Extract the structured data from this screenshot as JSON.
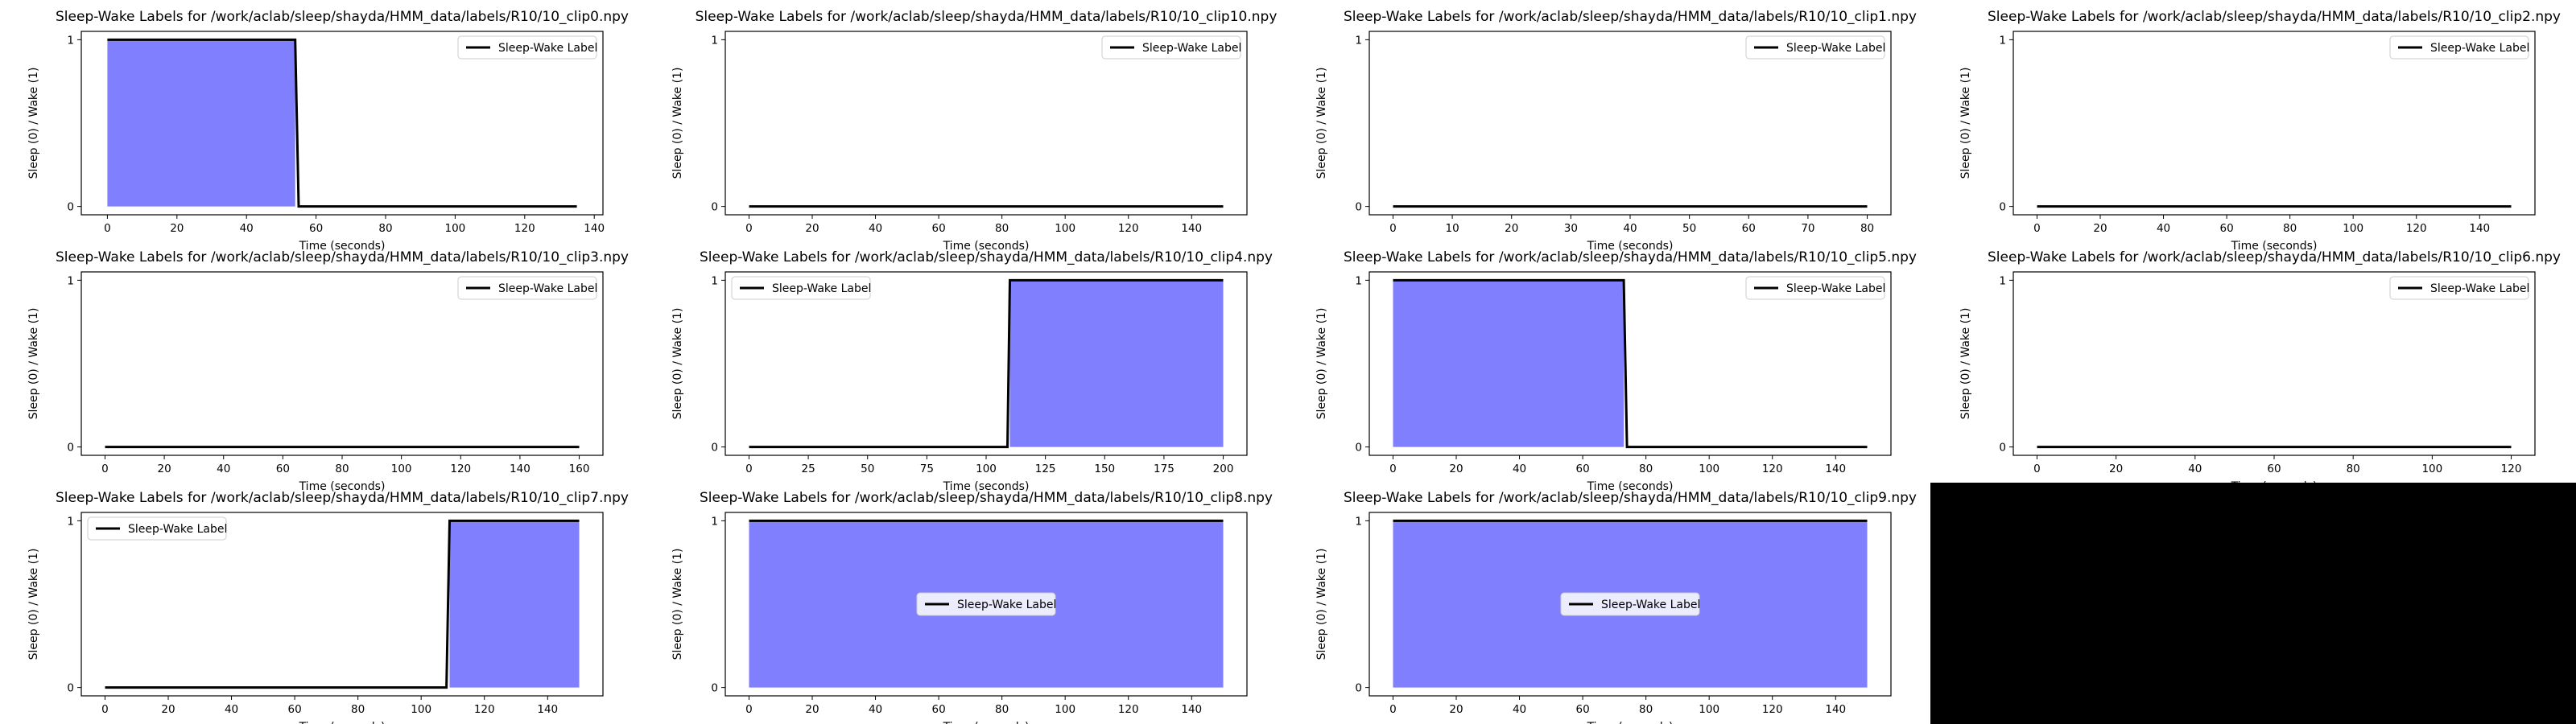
{
  "figure": {
    "background": "#ffffff",
    "fill_color": "#8080ff",
    "line_color": "#000000",
    "empty_panel_color": "#000000"
  },
  "chart_data": [
    {
      "type": "area",
      "title": "Sleep-Wake Labels for /work/aclab/sleep/shayda/HMM_data/labels/R10/10_clip0.npy",
      "xlabel": "Time (seconds)",
      "ylabel": "Sleep (0) / Wake (1)",
      "xlim": [
        -7.5,
        142.5
      ],
      "ylim": [
        -0.05,
        1.05
      ],
      "xticks": [
        0,
        20,
        40,
        60,
        80,
        100,
        120,
        140
      ],
      "yticks": [
        0,
        1
      ],
      "legend": "upper right",
      "series": [
        {
          "name": "Sleep-Wake Label",
          "segments": [
            [
              0,
              54,
              1
            ],
            [
              55,
              135,
              0
            ]
          ]
        }
      ]
    },
    {
      "type": "area",
      "title": "Sleep-Wake Labels for /work/aclab/sleep/shayda/HMM_data/labels/R10/10_clip10.npy",
      "xlabel": "Time (seconds)",
      "ylabel": "Sleep (0) / Wake (1)",
      "xlim": [
        -7.5,
        157.5
      ],
      "ylim": [
        -0.05,
        1.05
      ],
      "xticks": [
        0,
        20,
        40,
        60,
        80,
        100,
        120,
        140
      ],
      "yticks": [
        0,
        1
      ],
      "legend": "upper right",
      "series": [
        {
          "name": "Sleep-Wake Label",
          "segments": [
            [
              0,
              150,
              0
            ]
          ]
        }
      ]
    },
    {
      "type": "area",
      "title": "Sleep-Wake Labels for /work/aclab/sleep/shayda/HMM_data/labels/R10/10_clip1.npy",
      "xlabel": "Time (seconds)",
      "ylabel": "Sleep (0) / Wake (1)",
      "xlim": [
        -4,
        84
      ],
      "ylim": [
        -0.05,
        1.05
      ],
      "xticks": [
        0,
        10,
        20,
        30,
        40,
        50,
        60,
        70,
        80
      ],
      "yticks": [
        0,
        1
      ],
      "legend": "upper right",
      "series": [
        {
          "name": "Sleep-Wake Label",
          "segments": [
            [
              0,
              80,
              0
            ]
          ]
        }
      ]
    },
    {
      "type": "area",
      "title": "Sleep-Wake Labels for /work/aclab/sleep/shayda/HMM_data/labels/R10/10_clip2.npy",
      "xlabel": "Time (seconds)",
      "ylabel": "Sleep (0) / Wake (1)",
      "xlim": [
        -7.5,
        157.5
      ],
      "ylim": [
        -0.05,
        1.05
      ],
      "xticks": [
        0,
        20,
        40,
        60,
        80,
        100,
        120,
        140
      ],
      "yticks": [
        0,
        1
      ],
      "legend": "upper right",
      "series": [
        {
          "name": "Sleep-Wake Label",
          "segments": [
            [
              0,
              150,
              0
            ]
          ]
        }
      ]
    },
    {
      "type": "area",
      "title": "Sleep-Wake Labels for /work/aclab/sleep/shayda/HMM_data/labels/R10/10_clip3.npy",
      "xlabel": "Time (seconds)",
      "ylabel": "Sleep (0) / Wake (1)",
      "xlim": [
        -8,
        168
      ],
      "ylim": [
        -0.05,
        1.05
      ],
      "xticks": [
        0,
        20,
        40,
        60,
        80,
        100,
        120,
        140,
        160
      ],
      "yticks": [
        0,
        1
      ],
      "legend": "upper right",
      "series": [
        {
          "name": "Sleep-Wake Label",
          "segments": [
            [
              0,
              160,
              0
            ]
          ]
        }
      ]
    },
    {
      "type": "area",
      "title": "Sleep-Wake Labels for /work/aclab/sleep/shayda/HMM_data/labels/R10/10_clip4.npy",
      "xlabel": "Time (seconds)",
      "ylabel": "Sleep (0) / Wake (1)",
      "xlim": [
        -10,
        210
      ],
      "ylim": [
        -0.05,
        1.05
      ],
      "xticks": [
        0,
        25,
        50,
        75,
        100,
        125,
        150,
        175,
        200
      ],
      "yticks": [
        0,
        1
      ],
      "legend": "upper left",
      "series": [
        {
          "name": "Sleep-Wake Label",
          "segments": [
            [
              0,
              109,
              0
            ],
            [
              110,
              200,
              1
            ]
          ]
        }
      ]
    },
    {
      "type": "area",
      "title": "Sleep-Wake Labels for /work/aclab/sleep/shayda/HMM_data/labels/R10/10_clip5.npy",
      "xlabel": "Time (seconds)",
      "ylabel": "Sleep (0) / Wake (1)",
      "xlim": [
        -7.5,
        157.5
      ],
      "ylim": [
        -0.05,
        1.05
      ],
      "xticks": [
        0,
        20,
        40,
        60,
        80,
        100,
        120,
        140
      ],
      "yticks": [
        0,
        1
      ],
      "legend": "upper right",
      "series": [
        {
          "name": "Sleep-Wake Label",
          "segments": [
            [
              0,
              73,
              1
            ],
            [
              74,
              150,
              0
            ]
          ]
        }
      ]
    },
    {
      "type": "area",
      "title": "Sleep-Wake Labels for /work/aclab/sleep/shayda/HMM_data/labels/R10/10_clip6.npy",
      "xlabel": "Time (seconds)",
      "ylabel": "Sleep (0) / Wake (1)",
      "xlim": [
        -6,
        126
      ],
      "ylim": [
        -0.05,
        1.05
      ],
      "xticks": [
        0,
        20,
        40,
        60,
        80,
        100,
        120
      ],
      "yticks": [
        0,
        1
      ],
      "legend": "upper right",
      "series": [
        {
          "name": "Sleep-Wake Label",
          "segments": [
            [
              0,
              120,
              0
            ]
          ]
        }
      ]
    },
    {
      "type": "area",
      "title": "Sleep-Wake Labels for /work/aclab/sleep/shayda/HMM_data/labels/R10/10_clip7.npy",
      "xlabel": "Time (seconds)",
      "ylabel": "Sleep (0) / Wake (1)",
      "xlim": [
        -7.5,
        157.5
      ],
      "ylim": [
        -0.05,
        1.05
      ],
      "xticks": [
        0,
        20,
        40,
        60,
        80,
        100,
        120,
        140
      ],
      "yticks": [
        0,
        1
      ],
      "legend": "upper left",
      "series": [
        {
          "name": "Sleep-Wake Label",
          "segments": [
            [
              0,
              108,
              0
            ],
            [
              109,
              150,
              1
            ]
          ]
        }
      ]
    },
    {
      "type": "area",
      "title": "Sleep-Wake Labels for /work/aclab/sleep/shayda/HMM_data/labels/R10/10_clip8.npy",
      "xlabel": "Time (seconds)",
      "ylabel": "Sleep (0) / Wake (1)",
      "xlim": [
        -7.5,
        157.5
      ],
      "ylim": [
        -0.05,
        1.05
      ],
      "xticks": [
        0,
        20,
        40,
        60,
        80,
        100,
        120,
        140
      ],
      "yticks": [
        0,
        1
      ],
      "legend": "center",
      "series": [
        {
          "name": "Sleep-Wake Label",
          "segments": [
            [
              0,
              150,
              1
            ]
          ]
        }
      ]
    },
    {
      "type": "area",
      "title": "Sleep-Wake Labels for /work/aclab/sleep/shayda/HMM_data/labels/R10/10_clip9.npy",
      "xlabel": "Time (seconds)",
      "ylabel": "Sleep (0) / Wake (1)",
      "xlim": [
        -7.5,
        157.5
      ],
      "ylim": [
        -0.05,
        1.05
      ],
      "xticks": [
        0,
        20,
        40,
        60,
        80,
        100,
        120,
        140
      ],
      "yticks": [
        0,
        1
      ],
      "legend": "center",
      "series": [
        {
          "name": "Sleep-Wake Label",
          "segments": [
            [
              0,
              150,
              1
            ]
          ]
        }
      ]
    }
  ]
}
